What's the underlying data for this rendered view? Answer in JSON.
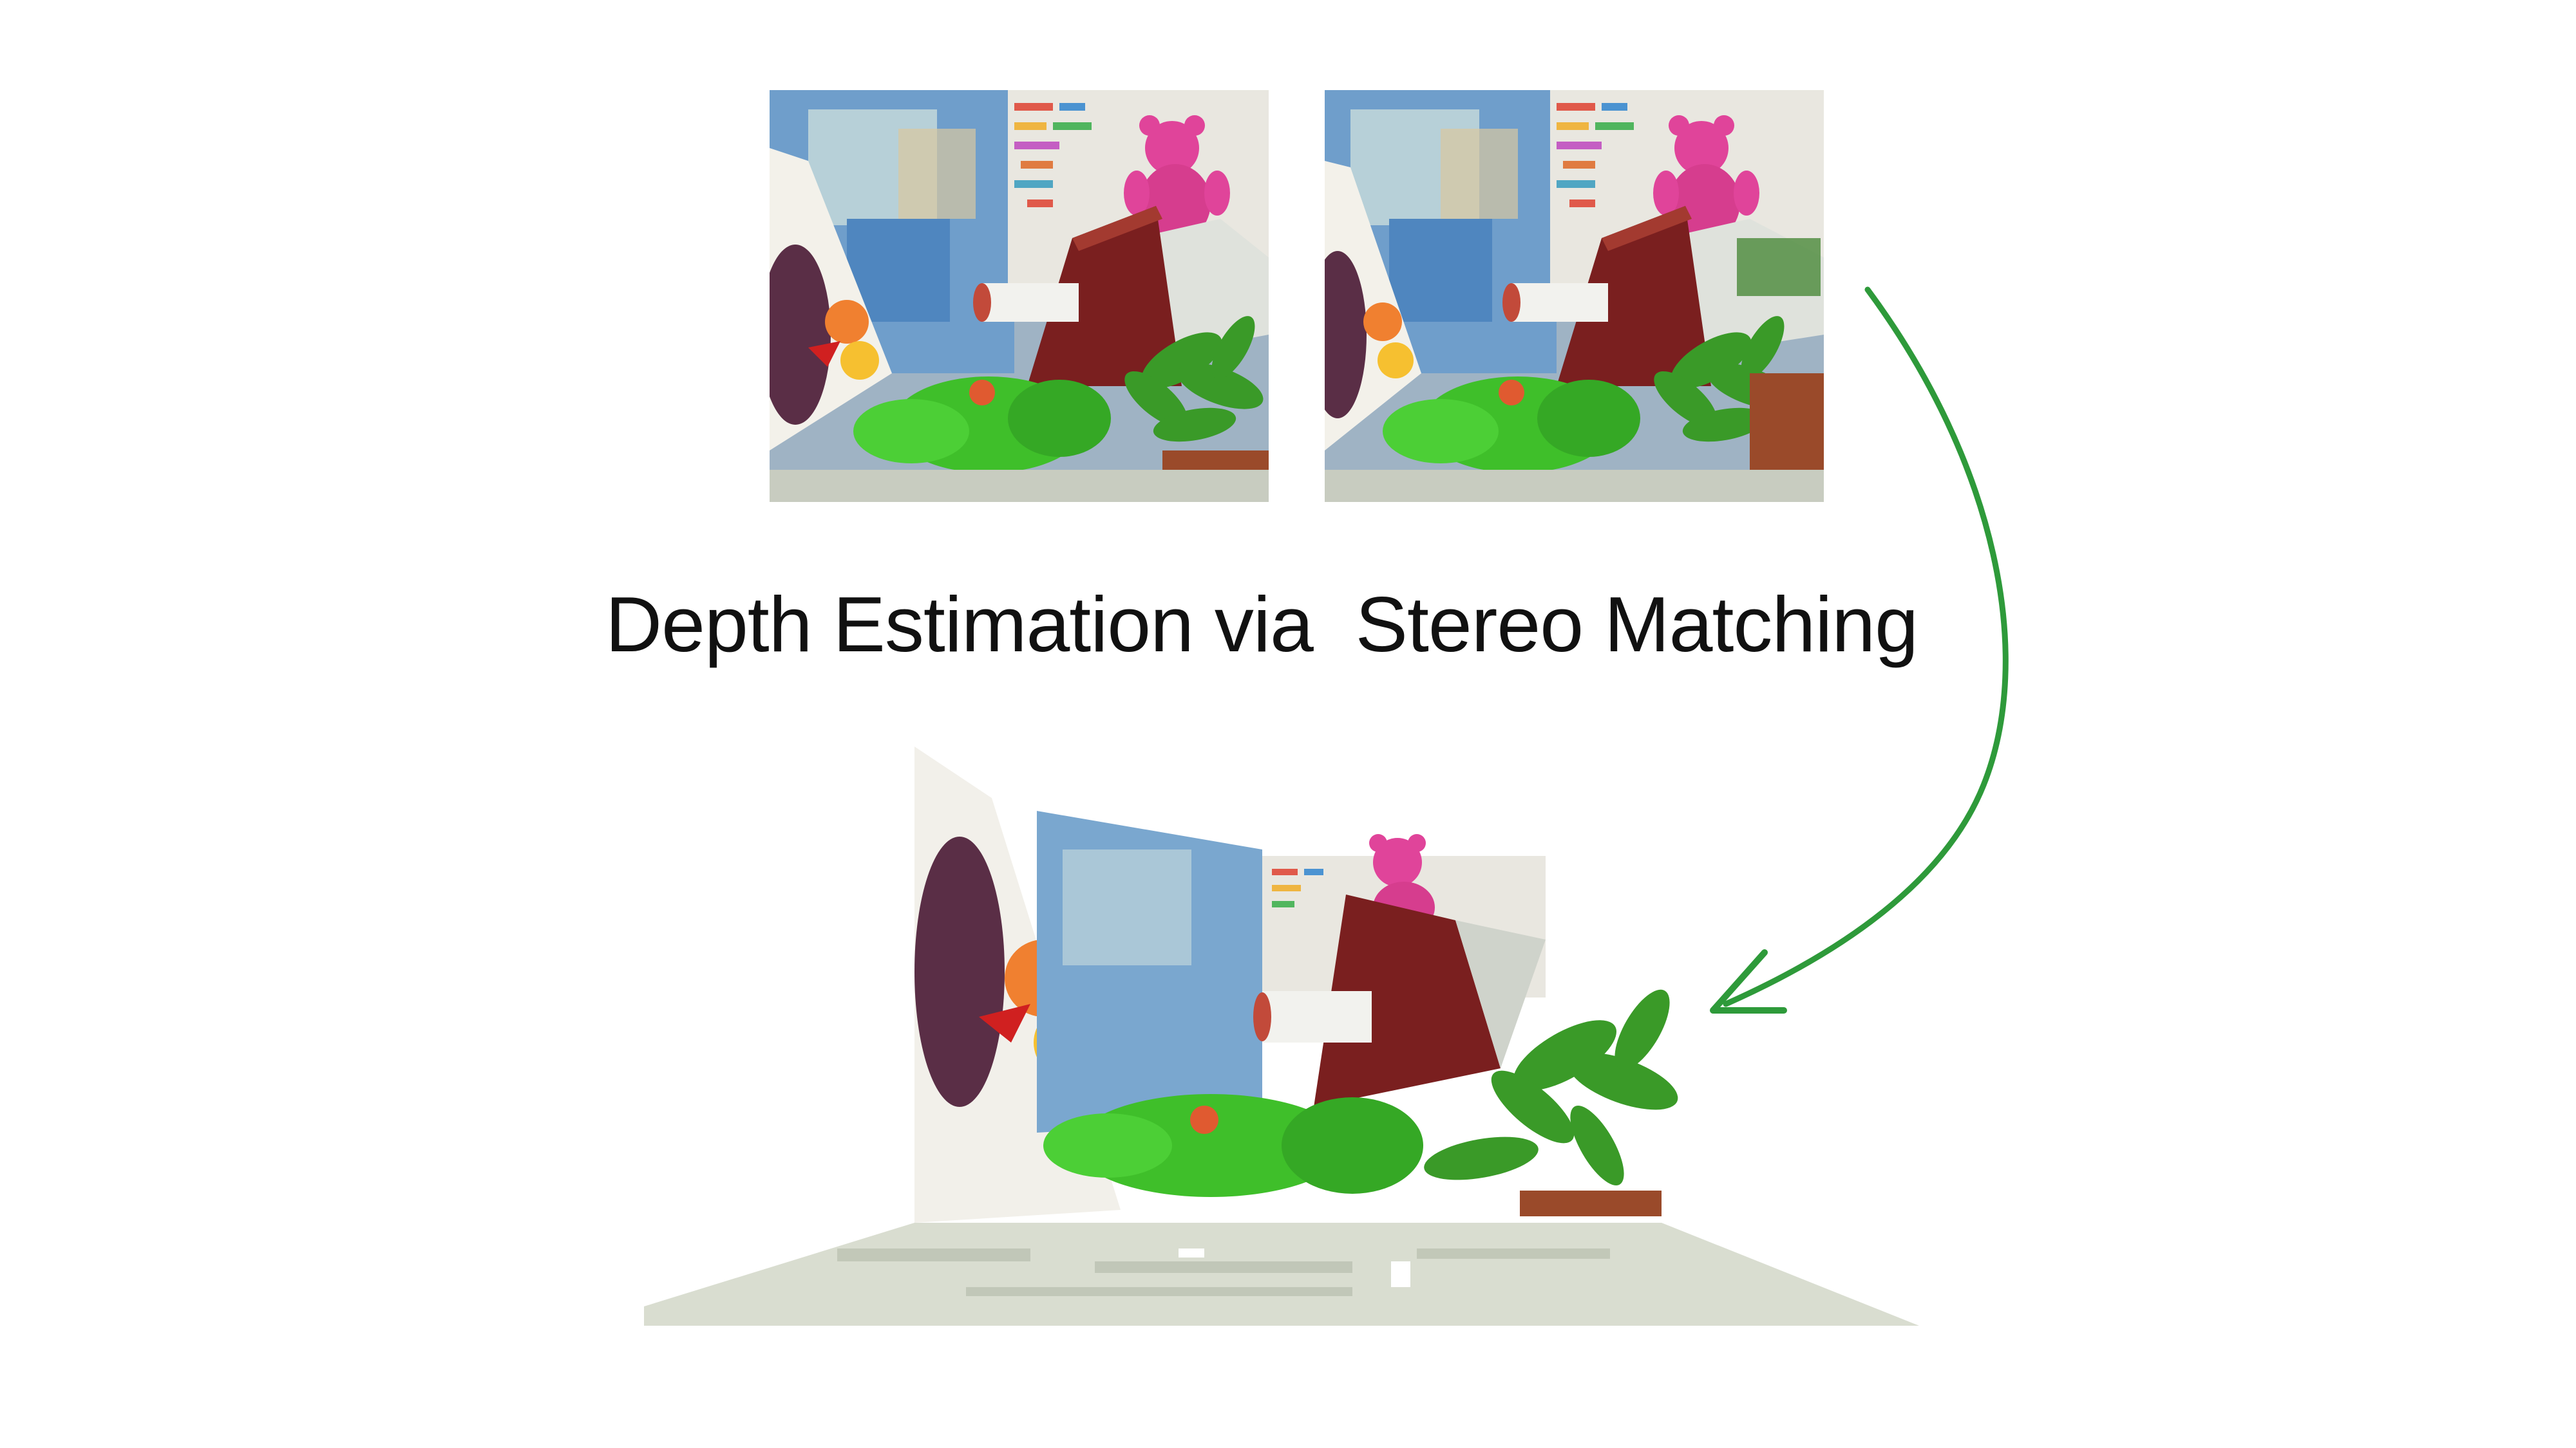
{
  "caption": {
    "line": "Depth Estimation via  Stereo Matching"
  },
  "images": {
    "left_view": "left stereo view",
    "right_view": "right stereo view",
    "reconstruction": "3D point cloud"
  },
  "colors": {
    "arrow": "#2e9a3a",
    "text": "#111111"
  }
}
